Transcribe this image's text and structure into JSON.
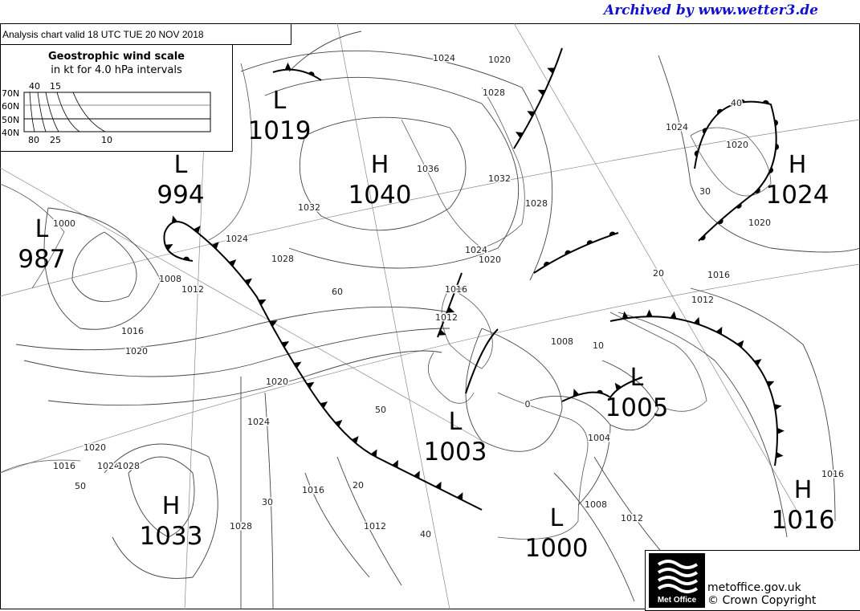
{
  "archive_note": "Archived by www.wetter3.de",
  "chart_title": "Analysis chart  valid 18 UTC TUE 20  NOV 2018",
  "wind_scale": {
    "title": "Geostrophic wind scale",
    "subtitle": "in kt for 4.0 hPa intervals",
    "lat_labels": [
      "70N",
      "60N",
      "50N",
      "40N"
    ],
    "top_labels": [
      "40",
      "15"
    ],
    "bottom_labels": [
      "80",
      "25",
      "10"
    ]
  },
  "pressure_centres": [
    {
      "type": "L",
      "value": "1019"
    },
    {
      "type": "H",
      "value": "1040"
    },
    {
      "type": "L",
      "value": "994"
    },
    {
      "type": "L",
      "value": "987"
    },
    {
      "type": "H",
      "value": "1024"
    },
    {
      "type": "L",
      "value": "1005"
    },
    {
      "type": "L",
      "value": "1003"
    },
    {
      "type": "H",
      "value": "1033"
    },
    {
      "type": "L",
      "value": "1000"
    },
    {
      "type": "H",
      "value": "1016"
    }
  ],
  "isobar_labels": [
    "1024",
    "1020",
    "1028",
    "1024",
    "1020",
    "40",
    "1036",
    "1032",
    "1028",
    "1032",
    "1024",
    "1028",
    "1024",
    "1020",
    "30",
    "1020",
    "1016",
    "20",
    "1012",
    "1016",
    "60",
    "1012",
    "1008",
    "10",
    "1000",
    "1008",
    "1012",
    "1016",
    "1020",
    "1020",
    "50",
    "0",
    "1004",
    "1024",
    "1016",
    "1020",
    "1024",
    "1028",
    "50",
    "1016",
    "20",
    "30",
    "1028",
    "1012",
    "40",
    "1008",
    "1012",
    "1016"
  ],
  "fronts": [
    {
      "type": "cold"
    },
    {
      "type": "occluded"
    },
    {
      "type": "warm"
    },
    {
      "type": "cold"
    },
    {
      "type": "occluded"
    },
    {
      "type": "cold"
    },
    {
      "type": "warm"
    },
    {
      "type": "occluded"
    },
    {
      "type": "cold"
    },
    {
      "type": "trough"
    }
  ],
  "footer": {
    "logo_text": "Met Office",
    "site": "metoffice.gov.uk",
    "copyright": "© Crown Copyright"
  },
  "colors": {
    "archive": "#1010d0",
    "lines": "#000000",
    "coast": "#555555"
  }
}
